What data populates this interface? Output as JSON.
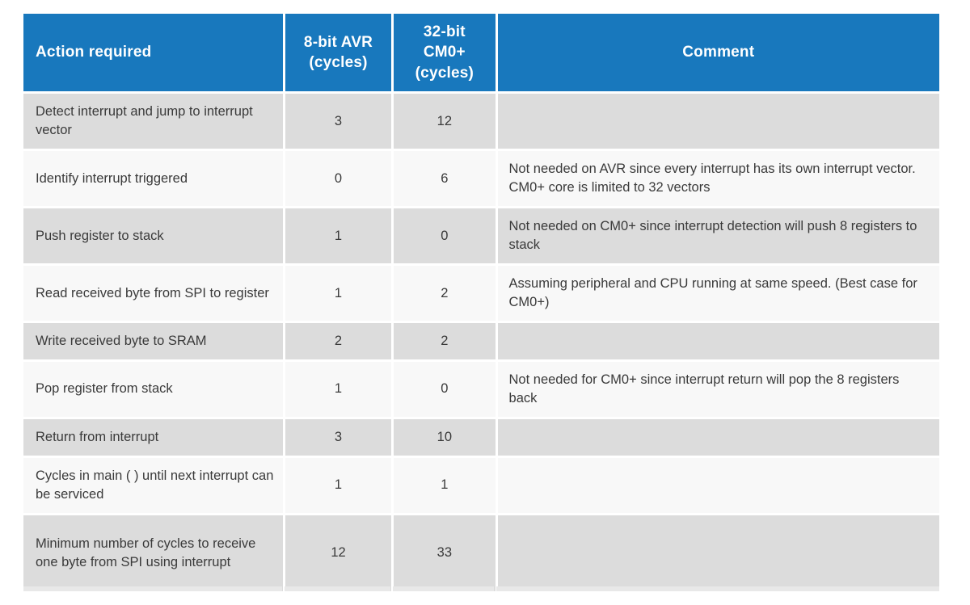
{
  "colors": {
    "header_bg": "#1878bd",
    "header_text": "#ffffff",
    "row_shaded": "#dcdcdc",
    "row_plain": "#f8f8f8",
    "body_text": "#3a3a3a",
    "cell_gap": "#ffffff",
    "bottom_edge": "#e8e8e8"
  },
  "table": {
    "columns": [
      {
        "label": "Action required"
      },
      {
        "label": "8-bit AVR\n(cycles)"
      },
      {
        "label": "32-bit\nCM0+\n(cycles)"
      },
      {
        "label": "Comment"
      }
    ],
    "rows": [
      {
        "action": "Detect interrupt and jump to interrupt vector",
        "avr": "3",
        "cm0": "12",
        "comment": ""
      },
      {
        "action": "Identify interrupt triggered",
        "avr": "0",
        "cm0": "6",
        "comment": "Not needed on AVR since every interrupt has its own interrupt vector. CM0+ core is limited to 32 vectors"
      },
      {
        "action": "Push register to stack",
        "avr": "1",
        "cm0": "0",
        "comment": "Not needed on CM0+ since interrupt detection will push 8 registers to stack"
      },
      {
        "action": "Read received byte from SPI to register",
        "avr": "1",
        "cm0": "2",
        "comment": "Assuming peripheral and CPU running at same speed. (Best case for CM0+)"
      },
      {
        "action": "Write received byte to SRAM",
        "avr": "2",
        "cm0": "2",
        "comment": ""
      },
      {
        "action": "Pop register from stack",
        "avr": "1",
        "cm0": "0",
        "comment": "Not needed for CM0+ since interrupt return will pop the 8 registers back"
      },
      {
        "action": "Return from interrupt",
        "avr": "3",
        "cm0": "10",
        "comment": ""
      },
      {
        "action": "Cycles in main ( ) until next interrupt can be serviced",
        "avr": "1",
        "cm0": "1",
        "comment": ""
      },
      {
        "action": "Minimum number of cycles to receive one byte from SPI using interrupt",
        "avr": "12",
        "cm0": "33",
        "comment": ""
      }
    ]
  },
  "chart_data": {
    "type": "table",
    "title": "Interrupt servicing cost: 8-bit AVR vs 32-bit CM0+",
    "columns": [
      "Action required",
      "8-bit AVR (cycles)",
      "32-bit CM0+ (cycles)",
      "Comment"
    ],
    "rows": [
      [
        "Detect interrupt and jump to interrupt vector",
        3,
        12,
        ""
      ],
      [
        "Identify interrupt triggered",
        0,
        6,
        "Not needed on AVR since every interrupt has its own interrupt vector. CM0+ core is limited to 32 vectors"
      ],
      [
        "Push register to stack",
        1,
        0,
        "Not needed on CM0+ since interrupt detection will push 8 registers to stack"
      ],
      [
        "Read received byte from SPI to register",
        1,
        2,
        "Assuming peripheral and CPU running at same speed. (Best case for CM0+)"
      ],
      [
        "Write received byte to SRAM",
        2,
        2,
        ""
      ],
      [
        "Pop register from stack",
        1,
        0,
        "Not needed for CM0+ since interrupt return will pop the 8 registers back"
      ],
      [
        "Return from interrupt",
        3,
        10,
        ""
      ],
      [
        "Cycles in main ( ) until next interrupt can be serviced",
        1,
        1,
        ""
      ],
      [
        "Minimum number of cycles to receive one byte from SPI using interrupt",
        12,
        33,
        ""
      ]
    ]
  }
}
